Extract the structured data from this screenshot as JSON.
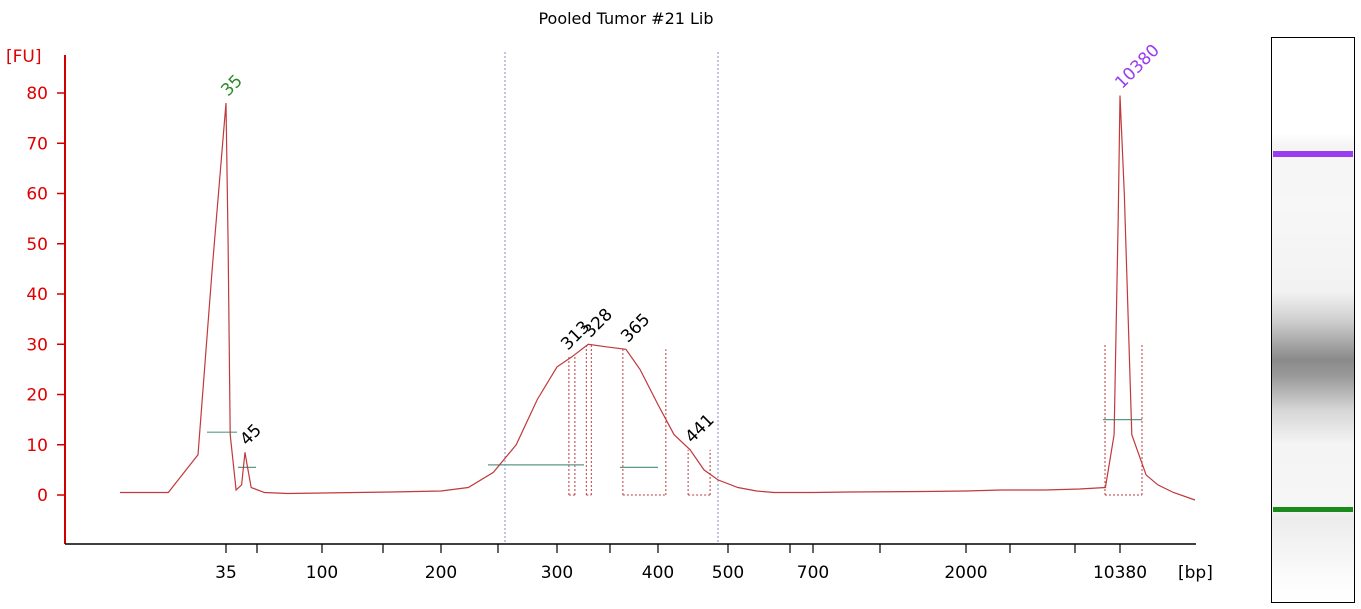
{
  "title": "Pooled Tumor #21 Lib",
  "colors": {
    "trace": "#c0393b",
    "axis": "#d00000",
    "lower_marker": "#2a8a2a",
    "upper_marker": "#9a3cf0",
    "baseline": "#5a9a8a",
    "region_line": "#8a8ad0"
  },
  "chart_data": {
    "type": "line",
    "title": "Pooled Tumor #21 Lib",
    "ylabel": "[FU]",
    "xlabel": "[bp]",
    "ylim": [
      -8,
      87
    ],
    "y_ticks": [
      0,
      10,
      20,
      30,
      40,
      50,
      60,
      70,
      80
    ],
    "y_tick_labels": [
      "0",
      "10",
      "20",
      "30",
      "40",
      "50",
      "60",
      "70",
      "80"
    ],
    "x_ticks": [
      35,
      100,
      200,
      300,
      400,
      500,
      700,
      2000,
      10380
    ],
    "x_tick_labels": [
      "35",
      "100",
      "200",
      "300",
      "400",
      "500",
      "700",
      "2000",
      "10380"
    ],
    "grid": false,
    "peaks": [
      {
        "label": "35",
        "bp": 35,
        "fu": 78,
        "color": "green"
      },
      {
        "label": "45",
        "bp": 45,
        "fu": 8.5,
        "color": "black"
      },
      {
        "label": "313",
        "bp": 313,
        "fu": 27.5,
        "color": "black"
      },
      {
        "label": "328",
        "bp": 328,
        "fu": 30,
        "color": "black"
      },
      {
        "label": "365",
        "bp": 365,
        "fu": 29,
        "color": "black"
      },
      {
        "label": "441",
        "bp": 441,
        "fu": 9,
        "color": "black"
      },
      {
        "label": "10380",
        "bp": 10380,
        "fu": 79.5,
        "color": "purple"
      }
    ],
    "region_bounds_bp": [
      250,
      480
    ],
    "series": [
      {
        "x": [
          28,
          31,
          33,
          34,
          35,
          36,
          37,
          40,
          43,
          45,
          46,
          48,
          55,
          70,
          100,
          150,
          200,
          220,
          240,
          260,
          280,
          300,
          313,
          328,
          345,
          365,
          380,
          400,
          420,
          441,
          460,
          480,
          520,
          560,
          600,
          700,
          900,
          1500,
          2000,
          3000,
          5000,
          7000,
          9000,
          9800,
          10200,
          10380,
          10600,
          11000,
          11800,
          12500,
          13500,
          15000
        ],
        "y": [
          0.5,
          0.5,
          8,
          45,
          78,
          50,
          12,
          1,
          2,
          8.5,
          6,
          1.5,
          0.5,
          0.3,
          0.4,
          0.6,
          0.8,
          1.5,
          4.5,
          10,
          19,
          25.5,
          27.5,
          30,
          29.5,
          29,
          25,
          18,
          12,
          9,
          5,
          3,
          1.5,
          0.8,
          0.5,
          0.5,
          0.6,
          0.7,
          0.8,
          1,
          1,
          1.2,
          1.5,
          12,
          55,
          79.5,
          60,
          12,
          4,
          2,
          0.5,
          -1
        ]
      }
    ]
  }
}
